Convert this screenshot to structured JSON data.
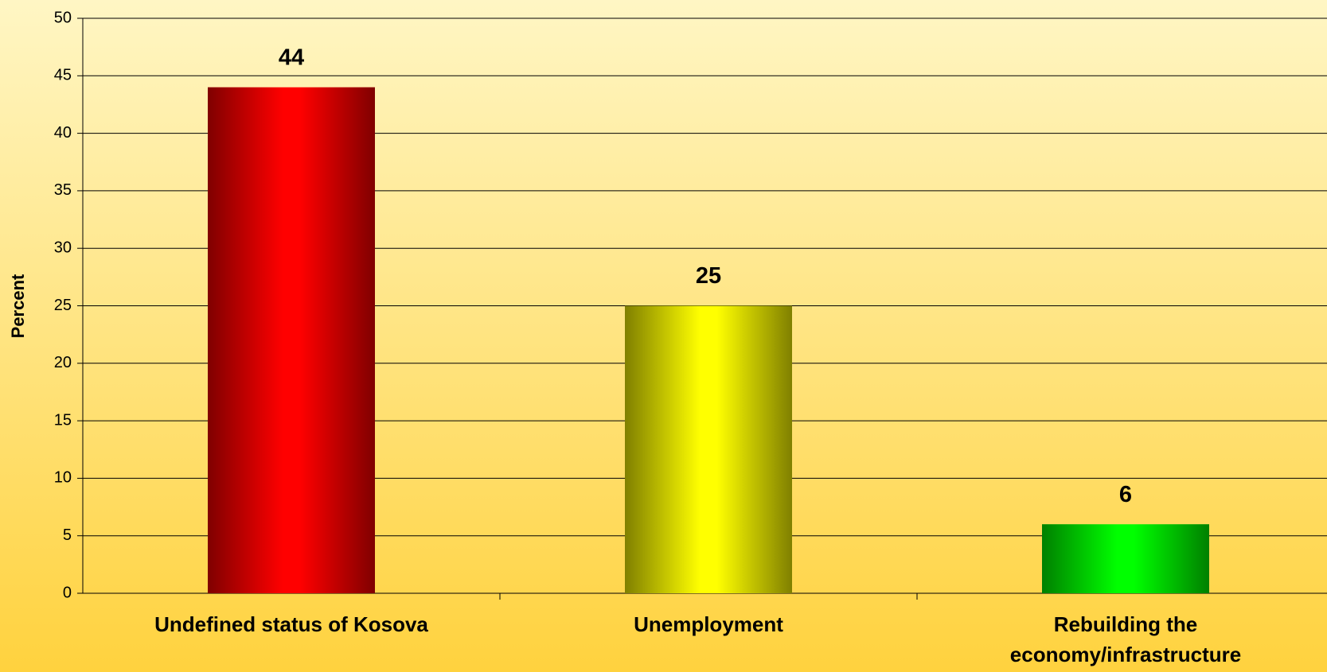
{
  "chart_data": {
    "type": "bar",
    "y_label": "Percent",
    "categories": [
      "Undefined status of Kosova",
      "Unemployment",
      "Rebuilding the economy/infrastructure"
    ],
    "values": [
      44,
      25,
      6
    ],
    "colors": [
      "#ff0000",
      "#ffff00",
      "#00ff00"
    ],
    "ylim": [
      0,
      50
    ],
    "yticks": [
      0,
      5,
      10,
      15,
      20,
      25,
      30,
      35,
      40,
      45,
      50
    ],
    "grid": true
  }
}
